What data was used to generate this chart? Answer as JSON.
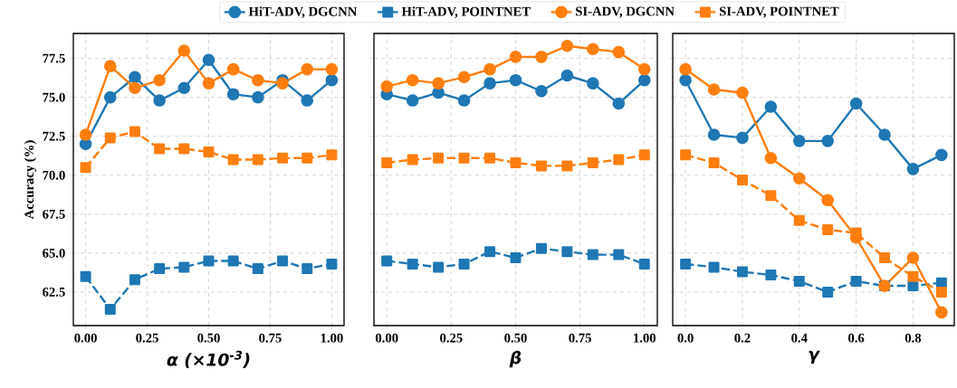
{
  "chart_data": [
    {
      "type": "line",
      "xlabel": "α (×10$^{-3}$)",
      "ylabel": "Accuracy (%)",
      "grid": true,
      "legend": "top",
      "x": [
        0,
        0.1,
        0.2,
        0.3,
        0.4,
        0.5,
        0.6,
        0.7,
        0.8,
        0.9,
        1.0
      ],
      "xlim": [
        -0.05,
        1.05
      ],
      "ylim": [
        60.35,
        79.1
      ],
      "xticks": [
        {
          "value": 0,
          "label": "0.00"
        },
        {
          "value": 0.25,
          "label": "0.25"
        },
        {
          "value": 0.5,
          "label": "0.50"
        },
        {
          "value": 0.75,
          "label": "0.75"
        },
        {
          "value": 1,
          "label": "1.00"
        }
      ],
      "yticks": [
        {
          "value": 62.5,
          "label": "62.5"
        },
        {
          "value": 65,
          "label": "65.0"
        },
        {
          "value": 67.5,
          "label": "67.5"
        },
        {
          "value": 70,
          "label": "70.0"
        },
        {
          "value": 72.5,
          "label": "72.5"
        },
        {
          "value": 75,
          "label": "75.0"
        },
        {
          "value": 77.5,
          "label": "77.5"
        }
      ],
      "series": [
        {
          "name": "HiT-ADV, DGCNN",
          "color": "#1f77b4",
          "marker": "circle",
          "line_style": "solid",
          "values": [
            72.0,
            75.0,
            76.3,
            74.8,
            75.6,
            77.4,
            75.2,
            75.0,
            76.1,
            74.8,
            76.1
          ]
        },
        {
          "name": "HiT-ADV, POINTNET",
          "color": "#1f77b4",
          "marker": "square",
          "line_style": "dashed",
          "values": [
            63.5,
            61.4,
            63.3,
            64.0,
            64.1,
            64.5,
            64.5,
            64.0,
            64.5,
            64.0,
            64.3
          ]
        },
        {
          "name": "SI-ADV, DGCNN",
          "color": "#ff7f0e",
          "marker": "circle",
          "line_style": "solid",
          "values": [
            72.6,
            77.0,
            75.6,
            76.1,
            78.0,
            75.9,
            76.8,
            76.1,
            75.9,
            76.8,
            76.8
          ]
        },
        {
          "name": "SI-ADV, POINTNET",
          "color": "#ff7f0e",
          "marker": "square",
          "line_style": "dashed",
          "values": [
            70.5,
            72.4,
            72.8,
            71.7,
            71.7,
            71.5,
            71.0,
            71.0,
            71.1,
            71.1,
            71.3
          ]
        }
      ]
    },
    {
      "type": "line",
      "xlabel": "β",
      "grid": true,
      "tick_labels": "x",
      "x": [
        0,
        0.1,
        0.2,
        0.3,
        0.4,
        0.5,
        0.6,
        0.7,
        0.8,
        0.9,
        1.0
      ],
      "xlim": [
        -0.05,
        1.05
      ],
      "ylim": [
        60.35,
        79.1
      ],
      "xticks": [
        {
          "value": 0,
          "label": "0.00"
        },
        {
          "value": 0.25,
          "label": "0.25"
        },
        {
          "value": 0.5,
          "label": "0.50"
        },
        {
          "value": 0.75,
          "label": "0.75"
        },
        {
          "value": 1,
          "label": "1.00"
        }
      ],
      "yticks": [
        62.5,
        65,
        67.5,
        70,
        72.5,
        75,
        77.5
      ],
      "series": [
        {
          "color": "#1f77b4",
          "marker": "circle",
          "line_style": "solid",
          "values": [
            75.2,
            74.8,
            75.3,
            74.8,
            75.9,
            76.1,
            75.4,
            76.4,
            75.9,
            74.6,
            76.1
          ]
        },
        {
          "color": "#1f77b4",
          "marker": "square",
          "line_style": "dashed",
          "values": [
            64.5,
            64.3,
            64.1,
            64.3,
            65.1,
            64.7,
            65.3,
            65.1,
            64.9,
            64.9,
            64.3
          ]
        },
        {
          "color": "#ff7f0e",
          "marker": "circle",
          "line_style": "solid",
          "values": [
            75.7,
            76.1,
            75.9,
            76.3,
            76.8,
            77.6,
            77.6,
            78.3,
            78.1,
            77.9,
            76.8
          ]
        },
        {
          "color": "#ff7f0e",
          "marker": "square",
          "line_style": "dashed",
          "values": [
            70.8,
            71.0,
            71.1,
            71.1,
            71.1,
            70.8,
            70.6,
            70.6,
            70.8,
            71.0,
            71.3
          ]
        }
      ]
    },
    {
      "type": "line",
      "xlabel": "γ",
      "grid": true,
      "tick_labels": "x",
      "x": [
        0,
        0.1,
        0.2,
        0.3,
        0.4,
        0.5,
        0.6,
        0.7,
        0.8,
        0.9
      ],
      "xlim": [
        -0.045,
        0.945
      ],
      "ylim": [
        60.35,
        79.1
      ],
      "xticks": [
        {
          "value": 0,
          "label": "0.0"
        },
        {
          "value": 0.2,
          "label": "0.2"
        },
        {
          "value": 0.4,
          "label": "0.4"
        },
        {
          "value": 0.6,
          "label": "0.6"
        },
        {
          "value": 0.8,
          "label": "0.8"
        }
      ],
      "yticks": [
        62.5,
        65,
        67.5,
        70,
        72.5,
        75,
        77.5
      ],
      "series": [
        {
          "color": "#1f77b4",
          "marker": "circle",
          "line_style": "solid",
          "values": [
            76.1,
            72.6,
            72.4,
            74.4,
            72.2,
            72.2,
            74.6,
            72.6,
            70.4,
            71.3
          ]
        },
        {
          "color": "#1f77b4",
          "marker": "square",
          "line_style": "dashed",
          "values": [
            64.3,
            64.1,
            63.8,
            63.6,
            63.2,
            62.5,
            63.2,
            62.9,
            62.9,
            63.1
          ]
        },
        {
          "color": "#ff7f0e",
          "marker": "circle",
          "line_style": "solid",
          "values": [
            76.8,
            75.5,
            75.3,
            71.1,
            69.8,
            68.4,
            66.0,
            62.9,
            64.7,
            61.2
          ]
        },
        {
          "color": "#ff7f0e",
          "marker": "square",
          "line_style": "dashed",
          "values": [
            71.3,
            70.8,
            69.7,
            68.7,
            67.1,
            66.5,
            66.3,
            64.7,
            63.5,
            62.5
          ]
        }
      ]
    }
  ]
}
